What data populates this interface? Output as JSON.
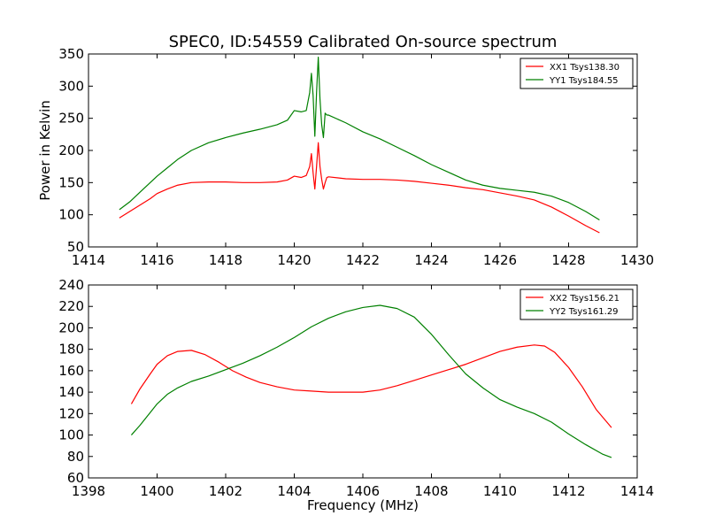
{
  "title": "SPEC0, ID:54559 Calibrated On-source spectrum",
  "chart_data": [
    {
      "type": "line",
      "xlabel": "",
      "ylabel": "Power in Kelvin",
      "xlim": [
        1414,
        1430
      ],
      "ylim": [
        50,
        350
      ],
      "xticks": [
        1414,
        1416,
        1418,
        1420,
        1422,
        1424,
        1426,
        1428,
        1430
      ],
      "yticks": [
        50,
        100,
        150,
        200,
        250,
        300,
        350
      ],
      "legend_position": "top-right",
      "series": [
        {
          "name": "XX1 Tsys138.30",
          "color": "#ff0000",
          "x": [
            1414.9,
            1415.2,
            1415.5,
            1415.8,
            1416.0,
            1416.3,
            1416.6,
            1417.0,
            1417.5,
            1418.0,
            1418.5,
            1419.0,
            1419.5,
            1419.8,
            1420.0,
            1420.2,
            1420.35,
            1420.45,
            1420.5,
            1420.55,
            1420.6,
            1420.65,
            1420.7,
            1420.75,
            1420.8,
            1420.85,
            1420.9,
            1420.95,
            1421.0,
            1421.5,
            1422.0,
            1422.5,
            1423.0,
            1423.5,
            1424.0,
            1424.5,
            1425.0,
            1425.5,
            1426.0,
            1426.5,
            1427.0,
            1427.5,
            1428.0,
            1428.5,
            1428.9
          ],
          "y": [
            95,
            105,
            115,
            125,
            133,
            140,
            146,
            150,
            151,
            151,
            150,
            150,
            151,
            154,
            160,
            158,
            161,
            175,
            195,
            165,
            140,
            175,
            212,
            175,
            155,
            140,
            150,
            158,
            159,
            156,
            155,
            155,
            154,
            152,
            149,
            146,
            142,
            139,
            134,
            129,
            123,
            112,
            98,
            83,
            72
          ]
        },
        {
          "name": "YY1 Tsys184.55",
          "color": "#008000",
          "x": [
            1414.9,
            1415.2,
            1415.5,
            1415.8,
            1416.0,
            1416.3,
            1416.6,
            1417.0,
            1417.5,
            1418.0,
            1418.5,
            1419.0,
            1419.5,
            1419.8,
            1420.0,
            1420.2,
            1420.35,
            1420.45,
            1420.5,
            1420.55,
            1420.6,
            1420.65,
            1420.7,
            1420.75,
            1420.8,
            1420.85,
            1420.9,
            1420.95,
            1421.0,
            1421.5,
            1422.0,
            1422.5,
            1423.0,
            1423.5,
            1424.0,
            1424.5,
            1425.0,
            1425.5,
            1426.0,
            1426.5,
            1427.0,
            1427.5,
            1428.0,
            1428.5,
            1428.9
          ],
          "y": [
            108,
            120,
            135,
            150,
            160,
            173,
            186,
            200,
            212,
            220,
            227,
            233,
            240,
            247,
            262,
            260,
            262,
            290,
            320,
            285,
            222,
            290,
            345,
            280,
            240,
            220,
            258,
            255,
            255,
            243,
            229,
            218,
            205,
            192,
            178,
            166,
            154,
            146,
            141,
            138,
            135,
            129,
            119,
            105,
            92
          ]
        }
      ]
    },
    {
      "type": "line",
      "xlabel": "Frequency (MHz)",
      "ylabel": "",
      "xlim": [
        1398,
        1414
      ],
      "ylim": [
        60,
        240
      ],
      "xticks": [
        1398,
        1400,
        1402,
        1404,
        1406,
        1408,
        1410,
        1412,
        1414
      ],
      "yticks": [
        60,
        80,
        100,
        120,
        140,
        160,
        180,
        200,
        220,
        240
      ],
      "legend_position": "top-right",
      "series": [
        {
          "name": "XX2 Tsys156.21",
          "color": "#ff0000",
          "x": [
            1399.25,
            1399.5,
            1399.8,
            1400.0,
            1400.3,
            1400.6,
            1401.0,
            1401.4,
            1401.8,
            1402.2,
            1402.6,
            1403.0,
            1403.5,
            1404.0,
            1404.5,
            1405.0,
            1405.5,
            1406.0,
            1406.5,
            1407.0,
            1407.5,
            1408.0,
            1408.5,
            1409.0,
            1409.5,
            1410.0,
            1410.5,
            1411.0,
            1411.3,
            1411.6,
            1412.0,
            1412.4,
            1412.8,
            1413.25
          ],
          "y": [
            129,
            143,
            157,
            166,
            174,
            178,
            179,
            175,
            168,
            160,
            154,
            149,
            145,
            142,
            141,
            140,
            140,
            140,
            142,
            146,
            151,
            156,
            161,
            166,
            172,
            178,
            182,
            184,
            183,
            177,
            163,
            145,
            124,
            107
          ]
        },
        {
          "name": "YY2 Tsys161.29",
          "color": "#008000",
          "x": [
            1399.25,
            1399.5,
            1399.8,
            1400.0,
            1400.3,
            1400.6,
            1401.0,
            1401.5,
            1402.0,
            1402.5,
            1403.0,
            1403.5,
            1404.0,
            1404.5,
            1405.0,
            1405.5,
            1406.0,
            1406.5,
            1407.0,
            1407.5,
            1408.0,
            1408.5,
            1409.0,
            1409.5,
            1410.0,
            1410.5,
            1411.0,
            1411.5,
            1412.0,
            1412.5,
            1413.0,
            1413.25
          ],
          "y": [
            100,
            109,
            121,
            129,
            138,
            144,
            150,
            155,
            161,
            167,
            174,
            182,
            191,
            201,
            209,
            215,
            219,
            221,
            218,
            210,
            194,
            175,
            157,
            144,
            133,
            126,
            120,
            112,
            101,
            91,
            82,
            79
          ]
        }
      ]
    }
  ]
}
